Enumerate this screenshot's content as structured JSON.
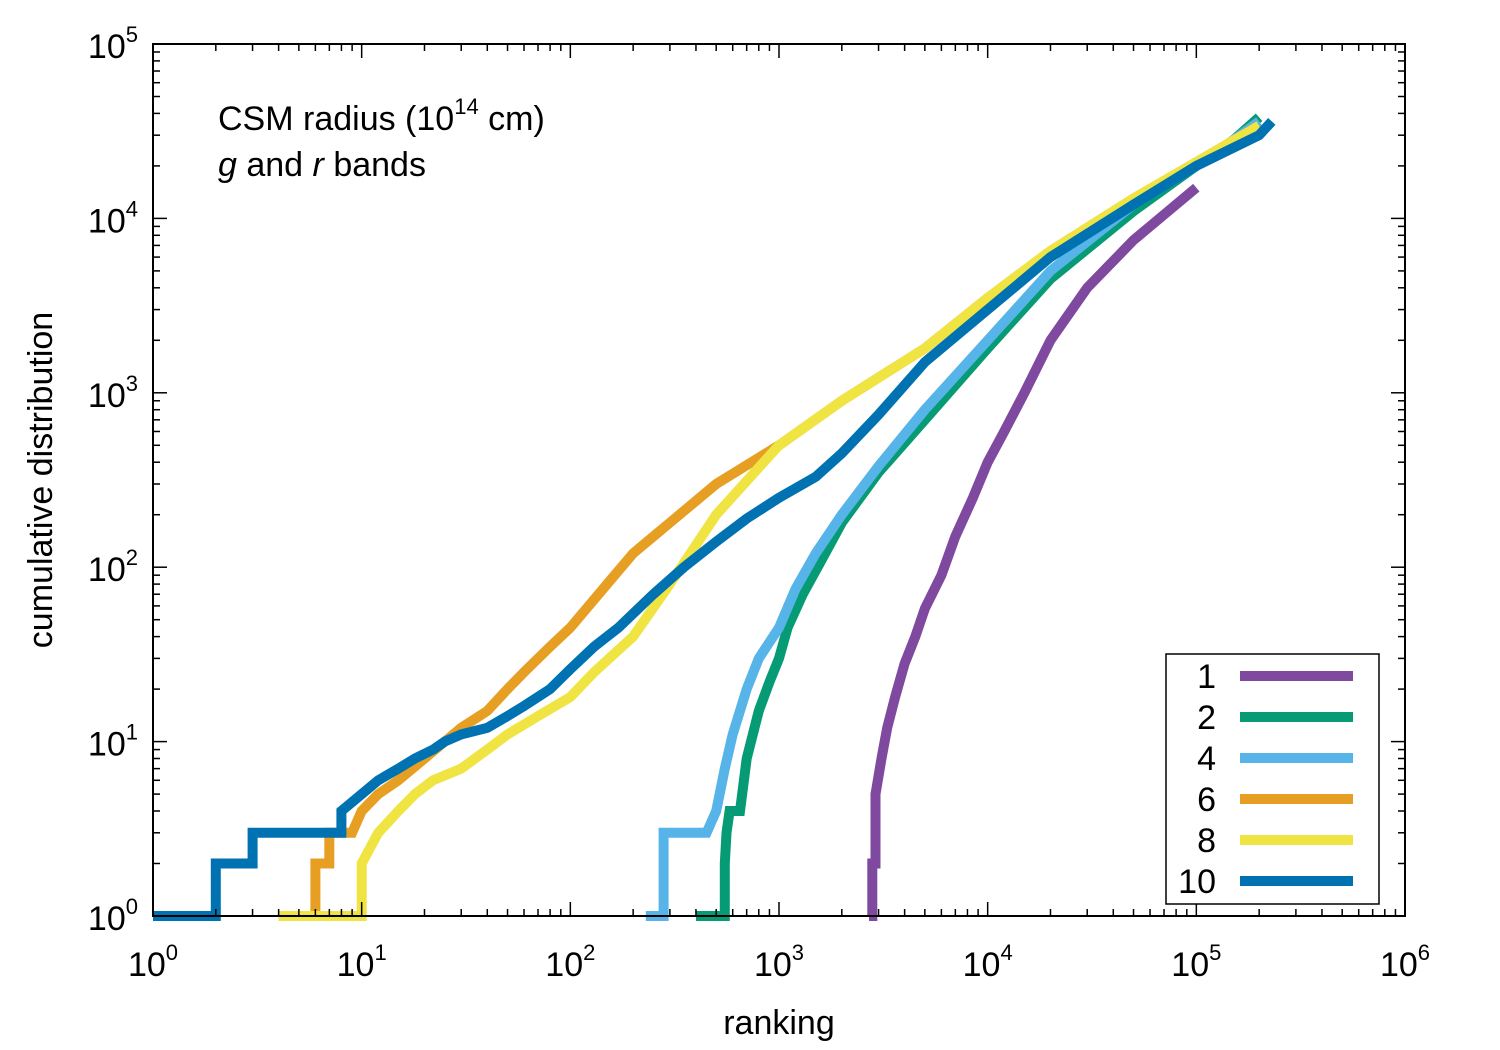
{
  "chart_data": {
    "type": "line",
    "annotation": {
      "line1_prefix": "CSM radius (10",
      "line1_sup": "14",
      "line1_suffix": " cm)",
      "line2_g": "g",
      "line2_and": " and ",
      "line2_r": "r",
      "line2_bands": " bands"
    },
    "xlabel": "ranking",
    "ylabel": "cumulative distribution",
    "x_scale": "log",
    "y_scale": "log",
    "xlim": [
      1,
      1000000
    ],
    "ylim": [
      1,
      100000
    ],
    "x_ticks": [
      {
        "base": "10",
        "exp": "0",
        "value": 1
      },
      {
        "base": "10",
        "exp": "1",
        "value": 10
      },
      {
        "base": "10",
        "exp": "2",
        "value": 100
      },
      {
        "base": "10",
        "exp": "3",
        "value": 1000
      },
      {
        "base": "10",
        "exp": "4",
        "value": 10000
      },
      {
        "base": "10",
        "exp": "5",
        "value": 100000
      },
      {
        "base": "10",
        "exp": "6",
        "value": 1000000
      }
    ],
    "y_ticks": [
      {
        "base": "10",
        "exp": "0",
        "value": 1
      },
      {
        "base": "10",
        "exp": "1",
        "value": 10
      },
      {
        "base": "10",
        "exp": "2",
        "value": 100
      },
      {
        "base": "10",
        "exp": "3",
        "value": 1000
      },
      {
        "base": "10",
        "exp": "4",
        "value": 10000
      },
      {
        "base": "10",
        "exp": "5",
        "value": 100000
      }
    ],
    "legend_position": "bottom-right",
    "grid": false,
    "series": [
      {
        "name": "1",
        "color": "#7f49a0",
        "points": [
          [
            2700,
            1
          ],
          [
            2800,
            1
          ],
          [
            2800,
            2
          ],
          [
            2900,
            2
          ],
          [
            2900,
            5
          ],
          [
            3100,
            8
          ],
          [
            3300,
            12
          ],
          [
            3600,
            18
          ],
          [
            4000,
            28
          ],
          [
            4500,
            40
          ],
          [
            5000,
            58
          ],
          [
            6000,
            90
          ],
          [
            7000,
            150
          ],
          [
            8500,
            250
          ],
          [
            10000,
            400
          ],
          [
            12000,
            600
          ],
          [
            15000,
            1000
          ],
          [
            20000,
            2000
          ],
          [
            30000,
            4000
          ],
          [
            50000,
            7500
          ],
          [
            80000,
            12000
          ],
          [
            100000,
            15000
          ]
        ]
      },
      {
        "name": "2",
        "color": "#079b75",
        "points": [
          [
            400,
            1
          ],
          [
            550,
            1
          ],
          [
            550,
            2
          ],
          [
            560,
            3
          ],
          [
            580,
            4
          ],
          [
            650,
            4
          ],
          [
            700,
            8
          ],
          [
            800,
            15
          ],
          [
            900,
            22
          ],
          [
            1000,
            30
          ],
          [
            1100,
            45
          ],
          [
            1300,
            70
          ],
          [
            1600,
            110
          ],
          [
            2000,
            180
          ],
          [
            3000,
            350
          ],
          [
            5000,
            700
          ],
          [
            10000,
            1800
          ],
          [
            20000,
            4500
          ],
          [
            50000,
            11000
          ],
          [
            100000,
            20000
          ],
          [
            150000,
            28000
          ],
          [
            200000,
            38000
          ]
        ]
      },
      {
        "name": "4",
        "color": "#56b4e9",
        "points": [
          [
            230,
            1
          ],
          [
            280,
            1
          ],
          [
            280,
            3
          ],
          [
            450,
            3
          ],
          [
            500,
            4
          ],
          [
            550,
            7
          ],
          [
            600,
            11
          ],
          [
            700,
            20
          ],
          [
            800,
            30
          ],
          [
            1000,
            45
          ],
          [
            1200,
            75
          ],
          [
            1500,
            120
          ],
          [
            2000,
            200
          ],
          [
            3000,
            380
          ],
          [
            5000,
            800
          ],
          [
            10000,
            2000
          ],
          [
            20000,
            5000
          ],
          [
            50000,
            12000
          ],
          [
            100000,
            20000
          ],
          [
            150000,
            28000
          ],
          [
            200000,
            36000
          ]
        ]
      },
      {
        "name": "6",
        "color": "#e69f22",
        "points": [
          [
            5.5,
            1
          ],
          [
            6,
            1
          ],
          [
            6,
            2
          ],
          [
            7,
            2
          ],
          [
            7,
            3
          ],
          [
            9,
            3
          ],
          [
            10,
            4
          ],
          [
            12,
            5
          ],
          [
            15,
            6
          ],
          [
            20,
            8
          ],
          [
            25,
            10
          ],
          [
            30,
            12
          ],
          [
            40,
            15
          ],
          [
            50,
            20
          ],
          [
            60,
            25
          ],
          [
            80,
            35
          ],
          [
            100,
            45
          ],
          [
            150,
            80
          ],
          [
            200,
            120
          ],
          [
            300,
            180
          ],
          [
            500,
            300
          ],
          [
            1000,
            500
          ],
          [
            2000,
            900
          ],
          [
            5000,
            1800
          ],
          [
            10000,
            3500
          ],
          [
            20000,
            6500
          ],
          [
            50000,
            13000
          ],
          [
            100000,
            21000
          ],
          [
            200000,
            34000
          ]
        ]
      },
      {
        "name": "8",
        "color": "#f0e442",
        "points": [
          [
            4,
            1
          ],
          [
            10,
            1
          ],
          [
            10,
            2
          ],
          [
            12,
            3
          ],
          [
            15,
            4
          ],
          [
            18,
            5
          ],
          [
            22,
            6
          ],
          [
            30,
            7
          ],
          [
            40,
            9
          ],
          [
            50,
            11
          ],
          [
            70,
            14
          ],
          [
            100,
            18
          ],
          [
            130,
            25
          ],
          [
            200,
            40
          ],
          [
            300,
            80
          ],
          [
            500,
            200
          ],
          [
            1000,
            500
          ],
          [
            2000,
            900
          ],
          [
            5000,
            1800
          ],
          [
            10000,
            3500
          ],
          [
            20000,
            6500
          ],
          [
            50000,
            13000
          ],
          [
            100000,
            21000
          ],
          [
            200000,
            34000
          ]
        ]
      },
      {
        "name": "10",
        "color": "#0072b2",
        "points": [
          [
            1,
            1
          ],
          [
            2,
            1
          ],
          [
            2,
            2
          ],
          [
            3,
            2
          ],
          [
            3,
            3
          ],
          [
            8,
            3
          ],
          [
            8,
            4
          ],
          [
            10,
            5
          ],
          [
            12,
            6
          ],
          [
            15,
            7
          ],
          [
            18,
            8
          ],
          [
            22,
            9
          ],
          [
            25,
            10
          ],
          [
            30,
            11
          ],
          [
            40,
            12
          ],
          [
            50,
            14
          ],
          [
            60,
            16
          ],
          [
            80,
            20
          ],
          [
            100,
            26
          ],
          [
            130,
            35
          ],
          [
            170,
            45
          ],
          [
            250,
            70
          ],
          [
            350,
            100
          ],
          [
            500,
            140
          ],
          [
            700,
            190
          ],
          [
            1000,
            250
          ],
          [
            1500,
            330
          ],
          [
            2000,
            450
          ],
          [
            3000,
            750
          ],
          [
            5000,
            1500
          ],
          [
            10000,
            3000
          ],
          [
            20000,
            6000
          ],
          [
            50000,
            12000
          ],
          [
            100000,
            20000
          ],
          [
            200000,
            30000
          ],
          [
            230000,
            36000
          ]
        ]
      }
    ]
  }
}
